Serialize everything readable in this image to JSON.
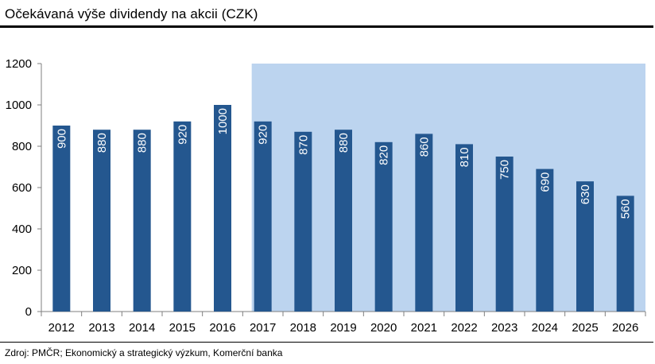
{
  "header": {
    "title": "Očekávaná výše dividendy na akcii (CZK)"
  },
  "footer": {
    "source": "Zdroj: PMČR; Ekonomický a strategický výzkum, Komerční banka"
  },
  "colors": {
    "bar": "#24578f",
    "forecast_band": "#bcd4ef",
    "axis": "#7f7f7f",
    "label_text": "#ffffff"
  },
  "chart_data": {
    "type": "bar",
    "title": "Očekávaná výše dividendy na akcii (CZK)",
    "categories": [
      "2012",
      "2013",
      "2014",
      "2015",
      "2016",
      "2017",
      "2018",
      "2019",
      "2020",
      "2021",
      "2022",
      "2023",
      "2024",
      "2025",
      "2026"
    ],
    "values": [
      900,
      880,
      880,
      920,
      1000,
      920,
      870,
      880,
      820,
      860,
      810,
      750,
      690,
      630,
      560
    ],
    "data_labels": [
      "900",
      "880",
      "880",
      "920",
      "1000",
      "920",
      "870",
      "880",
      "820",
      "860",
      "810",
      "750",
      "690",
      "630",
      "560"
    ],
    "ylim": [
      0,
      1200
    ],
    "yticks": [
      0,
      200,
      400,
      600,
      800,
      1000,
      1200
    ],
    "ytick_labels": [
      "0",
      "200",
      "400",
      "600",
      "800",
      "1000",
      "1200"
    ],
    "forecast_band": {
      "from_category": "2017",
      "to_category": "2026"
    },
    "grid": false,
    "legend": false
  }
}
